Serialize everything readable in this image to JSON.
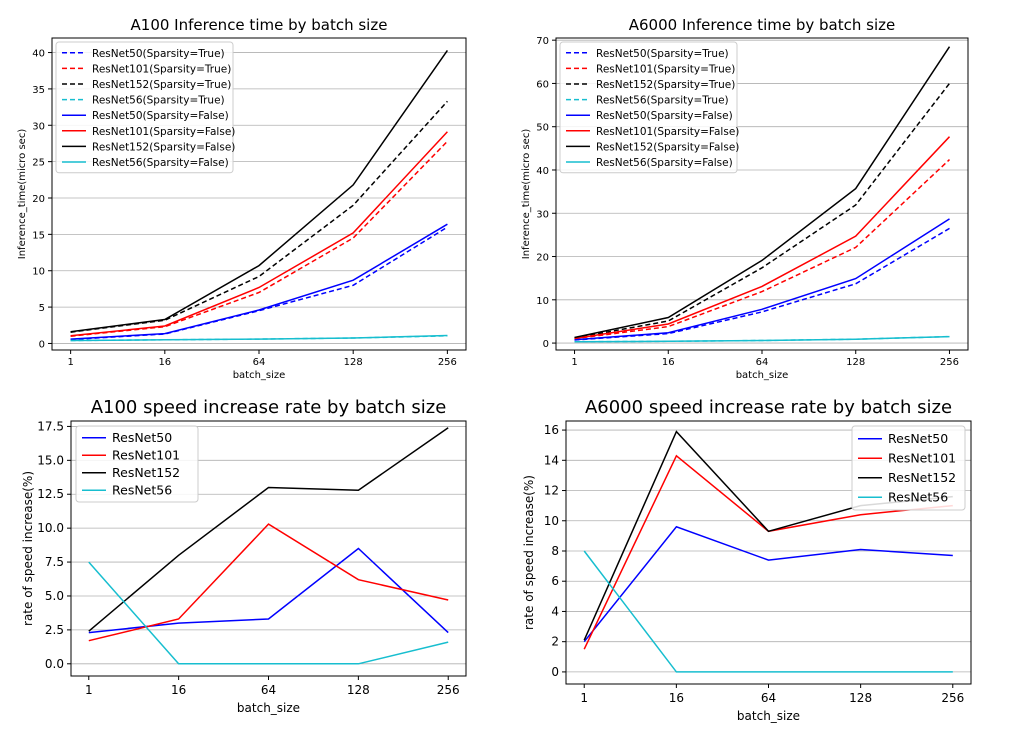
{
  "chart_data": [
    {
      "type": "line",
      "title": "A100 Inference time by batch size",
      "xlabel": "batch_size",
      "ylabel": "Inference_time(micro sec)",
      "categories": [
        "1",
        "16",
        "64",
        "128",
        "256"
      ],
      "ylim": [
        -0.9,
        42
      ],
      "yticks": [
        0,
        5,
        10,
        15,
        20,
        25,
        30,
        35,
        40
      ],
      "grid": "y",
      "legend": "top-left",
      "series": [
        {
          "name": "ResNet50(Sparsity=True)",
          "color": "#0000ff",
          "dash": true,
          "values": [
            0.55,
            1.3,
            4.5,
            8.0,
            16.0
          ]
        },
        {
          "name": "ResNet101(Sparsity=True)",
          "color": "#ff0000",
          "dash": true,
          "values": [
            1.0,
            2.3,
            7.0,
            14.5,
            27.8
          ]
        },
        {
          "name": "ResNet152(Sparsity=True)",
          "color": "#000000",
          "dash": true,
          "values": [
            1.55,
            3.2,
            9.2,
            19.0,
            33.3
          ]
        },
        {
          "name": "ResNet56(Sparsity=True)",
          "color": "#17becf",
          "dash": true,
          "values": [
            0.4,
            0.5,
            0.6,
            0.75,
            1.05
          ]
        },
        {
          "name": "ResNet50(Sparsity=False)",
          "color": "#0000ff",
          "dash": false,
          "values": [
            0.6,
            1.35,
            4.6,
            8.7,
            16.4
          ]
        },
        {
          "name": "ResNet101(Sparsity=False)",
          "color": "#ff0000",
          "dash": false,
          "values": [
            1.05,
            2.4,
            7.7,
            15.2,
            29.1
          ]
        },
        {
          "name": "ResNet152(Sparsity=False)",
          "color": "#000000",
          "dash": false,
          "values": [
            1.6,
            3.3,
            10.7,
            21.8,
            40.3
          ]
        },
        {
          "name": "ResNet56(Sparsity=False)",
          "color": "#17becf",
          "dash": false,
          "values": [
            0.4,
            0.5,
            0.6,
            0.75,
            1.1
          ]
        }
      ]
    },
    {
      "type": "line",
      "title": "A6000 Inference time by batch size",
      "xlabel": "batch_size",
      "ylabel": "Inference_time(micro sec)",
      "categories": [
        "1",
        "16",
        "64",
        "128",
        "256"
      ],
      "ylim": [
        -1.6,
        70.5
      ],
      "yticks": [
        0,
        10,
        20,
        30,
        40,
        50,
        60,
        70
      ],
      "grid": "y",
      "legend": "top-left",
      "series": [
        {
          "name": "ResNet50(Sparsity=True)",
          "color": "#0000ff",
          "dash": true,
          "values": [
            0.7,
            2.2,
            7.2,
            13.7,
            26.5
          ]
        },
        {
          "name": "ResNet101(Sparsity=True)",
          "color": "#ff0000",
          "dash": true,
          "values": [
            1.0,
            3.8,
            11.9,
            22.1,
            42.4
          ]
        },
        {
          "name": "ResNet152(Sparsity=True)",
          "color": "#000000",
          "dash": true,
          "values": [
            1.2,
            5.1,
            17.4,
            31.9,
            60.0
          ]
        },
        {
          "name": "ResNet56(Sparsity=True)",
          "color": "#17becf",
          "dash": true,
          "values": [
            0.3,
            0.4,
            0.6,
            0.9,
            1.5
          ]
        },
        {
          "name": "ResNet50(Sparsity=False)",
          "color": "#0000ff",
          "dash": false,
          "values": [
            0.75,
            2.4,
            7.8,
            14.9,
            28.7
          ]
        },
        {
          "name": "ResNet101(Sparsity=False)",
          "color": "#ff0000",
          "dash": false,
          "values": [
            1.05,
            4.4,
            13.1,
            24.7,
            47.7
          ]
        },
        {
          "name": "ResNet152(Sparsity=False)",
          "color": "#000000",
          "dash": false,
          "values": [
            1.3,
            5.9,
            19.1,
            35.7,
            68.5
          ]
        },
        {
          "name": "ResNet56(Sparsity=False)",
          "color": "#17becf",
          "dash": false,
          "values": [
            0.3,
            0.4,
            0.6,
            0.9,
            1.5
          ]
        }
      ]
    },
    {
      "type": "line",
      "title": "A100 speed increase rate by batch size",
      "xlabel": "batch_size",
      "ylabel": "rate of speed increase(%)",
      "categories": [
        "1",
        "16",
        "64",
        "128",
        "256"
      ],
      "ylim": [
        -0.9,
        17.9
      ],
      "yticks": [
        0.0,
        2.5,
        5.0,
        7.5,
        10.0,
        12.5,
        15.0,
        17.5
      ],
      "ytick_labels": [
        "0.0",
        "2.5",
        "5.0",
        "7.5",
        "10.0",
        "12.5",
        "15.0",
        "17.5"
      ],
      "grid": "y",
      "legend": "top-left",
      "series": [
        {
          "name": "ResNet50",
          "color": "#0000ff",
          "dash": false,
          "values": [
            2.3,
            3.0,
            3.3,
            8.5,
            2.3
          ]
        },
        {
          "name": "ResNet101",
          "color": "#ff0000",
          "dash": false,
          "values": [
            1.7,
            3.3,
            10.3,
            6.2,
            4.7
          ]
        },
        {
          "name": "ResNet152",
          "color": "#000000",
          "dash": false,
          "values": [
            2.4,
            8.0,
            13.0,
            12.8,
            17.4
          ]
        },
        {
          "name": "ResNet56",
          "color": "#17becf",
          "dash": false,
          "values": [
            7.5,
            0.0,
            0.0,
            0.0,
            1.6
          ]
        }
      ]
    },
    {
      "type": "line",
      "title": "A6000 speed increase rate by batch size",
      "xlabel": "batch_size",
      "ylabel": "rate of speed increase(%)",
      "categories": [
        "1",
        "16",
        "64",
        "128",
        "256"
      ],
      "ylim": [
        -0.8,
        16.6
      ],
      "yticks": [
        0,
        2,
        4,
        6,
        8,
        10,
        12,
        14,
        16
      ],
      "grid": "y",
      "legend": "top-right",
      "series": [
        {
          "name": "ResNet50",
          "color": "#0000ff",
          "dash": false,
          "values": [
            2.0,
            9.6,
            7.4,
            8.1,
            7.7
          ]
        },
        {
          "name": "ResNet101",
          "color": "#ff0000",
          "dash": false,
          "values": [
            1.5,
            14.3,
            9.3,
            10.4,
            11.0
          ]
        },
        {
          "name": "ResNet152",
          "color": "#000000",
          "dash": false,
          "values": [
            2.1,
            15.9,
            9.3,
            11.0,
            11.6
          ]
        },
        {
          "name": "ResNet56",
          "color": "#17becf",
          "dash": false,
          "values": [
            8.0,
            0.0,
            0.0,
            0.0,
            0.0
          ]
        }
      ]
    }
  ]
}
